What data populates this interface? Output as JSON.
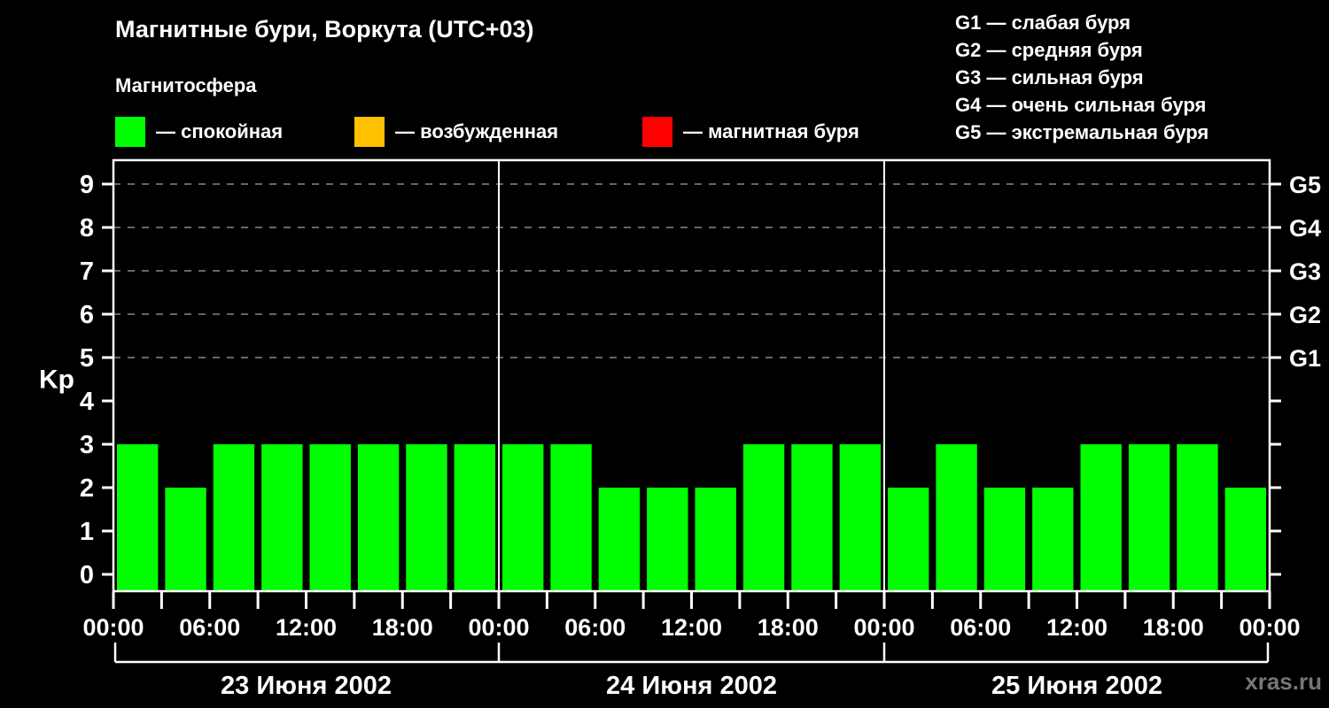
{
  "header": {
    "title": "Магнитные бури, Воркута (UTC+03)",
    "subtitle": "Магнитосфера",
    "legend": [
      {
        "color": "#00ff00",
        "label": "— спокойная",
        "name": "quiet"
      },
      {
        "color": "#ffc000",
        "label": "— возбужденная",
        "name": "active"
      },
      {
        "color": "#ff0000",
        "label": "— магнитная буря",
        "name": "storm"
      }
    ]
  },
  "storm_scale": [
    "G1 — слабая буря",
    "G2 — средняя буря",
    "G3 — сильная буря",
    "G4 — очень сильная буря",
    "G5 — экстремальная буря"
  ],
  "watermark": "xras.ru",
  "chart_data": {
    "type": "bar",
    "title": "Магнитные бури, Воркута (UTC+03)",
    "ylabel": "Kp",
    "ylim": [
      0,
      9.5
    ],
    "y_ticks": [
      0,
      1,
      2,
      3,
      4,
      5,
      6,
      7,
      8,
      9
    ],
    "grid_levels": [
      5,
      6,
      7,
      8,
      9
    ],
    "grid_color": "#888888",
    "right_axis": [
      {
        "value": 5,
        "label": "G1"
      },
      {
        "value": 6,
        "label": "G2"
      },
      {
        "value": 7,
        "label": "G3"
      },
      {
        "value": 8,
        "label": "G4"
      },
      {
        "value": 9,
        "label": "G5"
      }
    ],
    "x_time_labels": [
      "00:00",
      "06:00",
      "12:00",
      "18:00"
    ],
    "hours_per_bar": 3,
    "bars_per_day": 8,
    "colors": {
      "quiet": "#00ff00",
      "active": "#ffc000",
      "storm": "#ff0000"
    },
    "days": [
      {
        "date": "23 Июня 2002",
        "values": [
          3,
          2,
          3,
          3,
          3,
          3,
          3,
          3
        ]
      },
      {
        "date": "24 Июня 2002",
        "values": [
          3,
          3,
          2,
          2,
          2,
          3,
          3,
          3
        ]
      },
      {
        "date": "25 Июня 2002",
        "values": [
          2,
          3,
          2,
          2,
          3,
          3,
          3,
          2
        ]
      }
    ]
  }
}
